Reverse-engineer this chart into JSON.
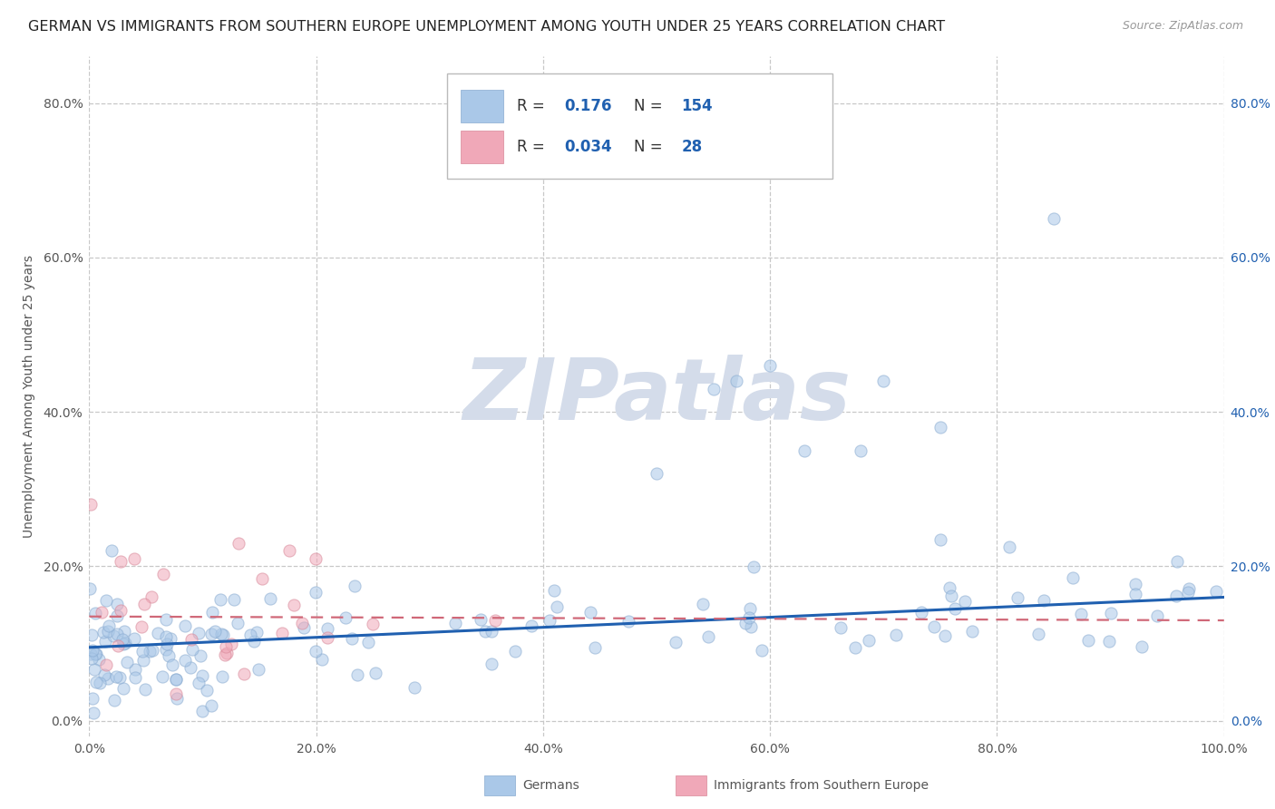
{
  "title": "GERMAN VS IMMIGRANTS FROM SOUTHERN EUROPE UNEMPLOYMENT AMONG YOUTH UNDER 25 YEARS CORRELATION CHART",
  "source": "Source: ZipAtlas.com",
  "ylabel": "Unemployment Among Youth under 25 years",
  "xlabel": "",
  "background_color": "#ffffff",
  "grid_color": "#c8c8c8",
  "series": [
    {
      "name": "Germans",
      "R": 0.176,
      "N": 154,
      "marker_color": "#aac8e8",
      "marker_edge_color": "#88aad0",
      "line_color": "#2060b0"
    },
    {
      "name": "Immigrants from Southern Europe",
      "R": 0.034,
      "N": 28,
      "marker_color": "#f0a8b8",
      "marker_edge_color": "#d88898",
      "line_color": "#d06878"
    }
  ],
  "xlim": [
    0.0,
    1.0
  ],
  "ylim": [
    -0.02,
    0.86
  ],
  "x_ticks": [
    0.0,
    0.2,
    0.4,
    0.6,
    0.8,
    1.0
  ],
  "x_tick_labels": [
    "0.0%",
    "20.0%",
    "40.0%",
    "60.0%",
    "80.0%",
    "100.0%"
  ],
  "y_ticks": [
    0.0,
    0.2,
    0.4,
    0.6,
    0.8
  ],
  "y_tick_labels": [
    "0.0%",
    "20.0%",
    "40.0%",
    "60.0%",
    "80.0%"
  ],
  "y_right_labels": [
    "0.0%",
    "20.0%",
    "40.0%",
    "60.0%",
    "80.0%"
  ],
  "watermark": "ZIPatlas",
  "watermark_color": "#d4dcea",
  "title_fontsize": 11.5,
  "axis_fontsize": 10,
  "legend_fontsize": 12,
  "scatter_size": 90,
  "scatter_alpha": 0.55,
  "scatter_linewidth": 0.8,
  "value_color": "#2060b0",
  "legend_box_color": "#bbbbbb",
  "bottom_legend_color": "#555555"
}
